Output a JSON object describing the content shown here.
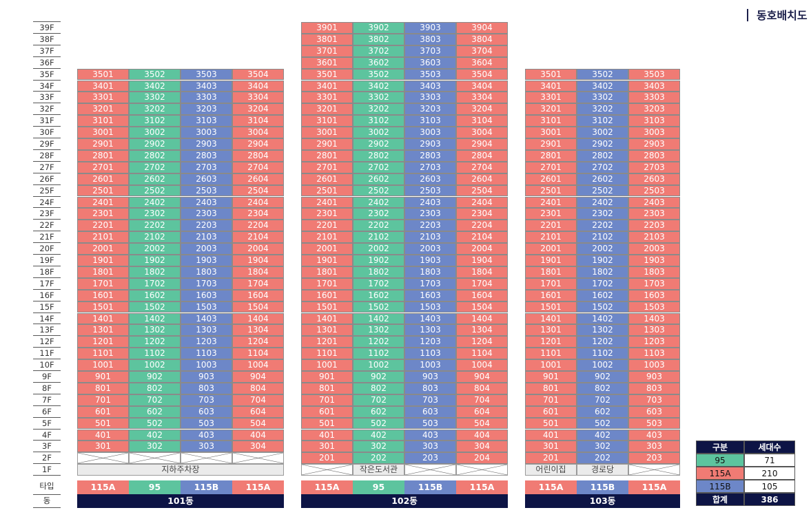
{
  "page": {
    "title": "동호배치도"
  },
  "floor_labels": [
    "39F",
    "38F",
    "37F",
    "36F",
    "35F",
    "34F",
    "33F",
    "32F",
    "31F",
    "30F",
    "29F",
    "28F",
    "27F",
    "26F",
    "25F",
    "24F",
    "23F",
    "22F",
    "21F",
    "20F",
    "19F",
    "18F",
    "17F",
    "16F",
    "15F",
    "14F",
    "13F",
    "12F",
    "11F",
    "10F",
    "9F",
    "8F",
    "7F",
    "6F",
    "5F",
    "4F",
    "3F",
    "2F",
    "1F"
  ],
  "row_labels": {
    "type": "타입",
    "dong": "동"
  },
  "colors": {
    "115A": "#f07b74",
    "95": "#5dc49e",
    "115B": "#6d87c8",
    "navy": "#0d1445"
  },
  "buildings": [
    {
      "name": "101동",
      "top_floor": 35,
      "lowest_unit_floor": 3,
      "units": [
        {
          "line": "01",
          "type": "115A"
        },
        {
          "line": "02",
          "type": "95"
        },
        {
          "line": "03",
          "type": "115B"
        },
        {
          "line": "04",
          "type": "115A"
        }
      ],
      "floor2": "empty",
      "floor1": {
        "facilities": [
          "지하주차장"
        ]
      },
      "types": [
        "115A",
        "95",
        "115B",
        "115A"
      ]
    },
    {
      "name": "102동",
      "top_floor": 39,
      "lowest_unit_floor": 2,
      "units": [
        {
          "line": "01",
          "type": "115A"
        },
        {
          "line": "02",
          "type": "95"
        },
        {
          "line": "03",
          "type": "115B"
        },
        {
          "line": "04",
          "type": "115A"
        }
      ],
      "floor1": {
        "facilities": [
          "작은도서관"
        ]
      },
      "types": [
        "115A",
        "95",
        "115B",
        "115A"
      ]
    },
    {
      "name": "103동",
      "top_floor": 35,
      "lowest_unit_floor": 2,
      "units": [
        {
          "line": "01",
          "type": "115A"
        },
        {
          "line": "02",
          "type": "115B"
        },
        {
          "line": "03",
          "type": "115A"
        }
      ],
      "floor1": {
        "facilities": [
          "어린이집",
          "경로당"
        ]
      },
      "types": [
        "115A",
        "115B",
        "115A"
      ]
    }
  ],
  "legend": {
    "headers": [
      "구분",
      "세대수"
    ],
    "rows": [
      {
        "type": "95",
        "count": "71"
      },
      {
        "type": "115A",
        "count": "210"
      },
      {
        "type": "115B",
        "count": "105"
      }
    ],
    "total_label": "합계",
    "total": "386"
  }
}
